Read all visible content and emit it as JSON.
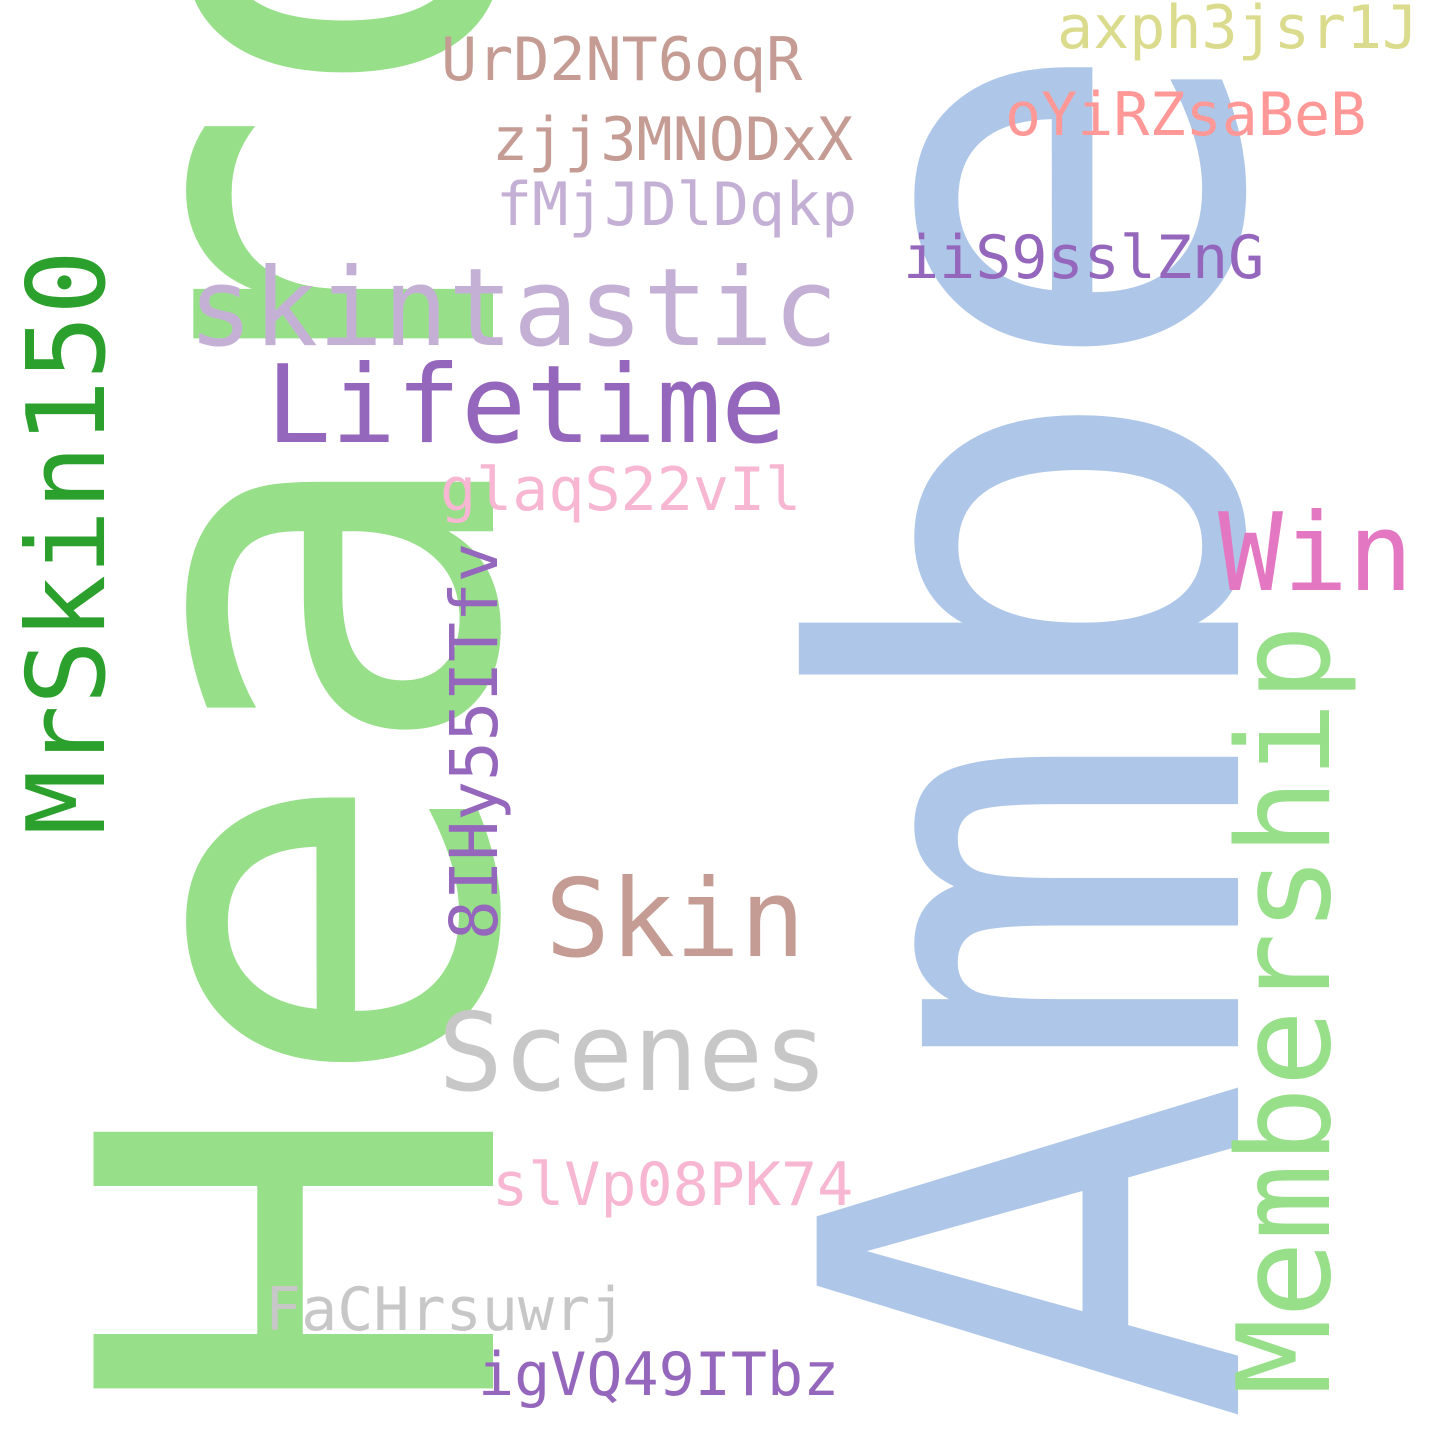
{
  "words": {
    "heard": {
      "text": "Heard",
      "color": "#98df8a"
    },
    "amber": {
      "text": "Amber",
      "color": "#aec7e8"
    },
    "mrskin150": {
      "text": "MrSkin150",
      "color": "#2ca02c"
    },
    "membership": {
      "text": "Membership",
      "color": "#98df8a"
    },
    "8ihy55itfv": {
      "text": "8IHy55ITfv",
      "color": "#9467bd"
    },
    "skintastic": {
      "text": "skintastic",
      "color": "#c5b0d5"
    },
    "lifetime": {
      "text": "Lifetime",
      "color": "#9467bd"
    },
    "win": {
      "text": "Win",
      "color": "#e377c2"
    },
    "skin": {
      "text": "Skin",
      "color": "#c49c94"
    },
    "scenes": {
      "text": "Scenes",
      "color": "#c7c7c7"
    },
    "axph3jsr1j": {
      "text": "axph3jsr1J",
      "color": "#dbdb8d"
    },
    "urd2nt6oqr": {
      "text": "UrD2NT6oqR",
      "color": "#c49c94"
    },
    "oyirzsabeb": {
      "text": "oYiRZsaBeB",
      "color": "#ff9896"
    },
    "zjj3mnodxx": {
      "text": "zjj3MNODxX",
      "color": "#c49c94"
    },
    "fmjjdldqkp": {
      "text": "fMjJDlDqkp",
      "color": "#c5b0d5"
    },
    "iis9sslzng": {
      "text": "iiS9sslZnG",
      "color": "#9467bd"
    },
    "glaqs22vil": {
      "text": "glaqS22vIl",
      "color": "#f7b6d2"
    },
    "slvp08pk74": {
      "text": "slVp08PK74",
      "color": "#f7b6d2"
    },
    "fachrsuwrj": {
      "text": "FaCHrsuwrj",
      "color": "#c7c7c7"
    },
    "igvq49itbz": {
      "text": "igVQ49ITbz",
      "color": "#9467bd"
    }
  }
}
